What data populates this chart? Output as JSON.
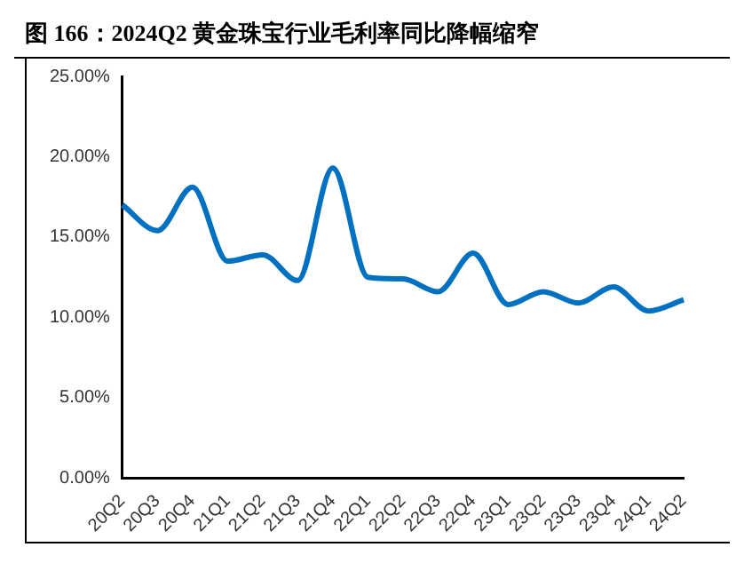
{
  "chart_data": {
    "type": "line",
    "title": "图 166：2024Q2 黄金珠宝行业毛利率同比降幅缩窄",
    "categories": [
      "20Q2",
      "20Q3",
      "20Q4",
      "21Q1",
      "21Q2",
      "21Q3",
      "21Q4",
      "22Q1",
      "22Q2",
      "22Q3",
      "22Q4",
      "23Q1",
      "23Q2",
      "23Q3",
      "23Q4",
      "24Q1",
      "24Q2"
    ],
    "series": [
      {
        "color": "#0070c0",
        "values": [
          17.0,
          15.4,
          18.1,
          13.5,
          13.9,
          12.3,
          19.3,
          12.5,
          12.4,
          11.6,
          14.0,
          10.8,
          11.6,
          10.9,
          11.9,
          10.4,
          11.1
        ]
      }
    ],
    "ylim": [
      0,
      25
    ],
    "yticks": [
      {
        "value": 0,
        "label": "0.00%"
      },
      {
        "value": 5,
        "label": "5.00%"
      },
      {
        "value": 10,
        "label": "10.00%"
      },
      {
        "value": 15,
        "label": "15.00%"
      },
      {
        "value": 20,
        "label": "20.00%"
      },
      {
        "value": 25,
        "label": "25.00%"
      }
    ],
    "grid": false,
    "legend": false,
    "marker": "none",
    "line_style": "solid"
  }
}
